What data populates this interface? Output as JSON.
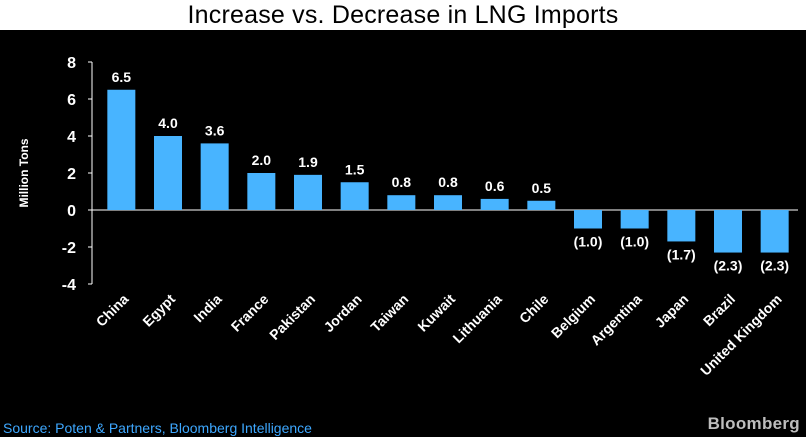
{
  "chart_data": {
    "type": "bar",
    "title": "Increase vs. Decrease in LNG Imports",
    "ylabel": "Million Tons",
    "xlabel": "",
    "ylim": [
      -4,
      8
    ],
    "yticks": [
      8,
      6,
      4,
      2,
      0,
      -2,
      -4
    ],
    "categories": [
      "China",
      "Egypt",
      "India",
      "France",
      "Pakistan",
      "Jordan",
      "Taiwan",
      "Kuwait",
      "Lithuania",
      "Chile",
      "Belgium",
      "Argentina",
      "Japan",
      "Brazil",
      "United Kingdom"
    ],
    "values": [
      6.5,
      4.0,
      3.6,
      2.0,
      1.9,
      1.5,
      0.8,
      0.8,
      0.6,
      0.5,
      -1.0,
      -1.0,
      -1.7,
      -2.3,
      -2.3
    ],
    "data_labels": [
      "6.5",
      "4.0",
      "3.6",
      "2.0",
      "1.9",
      "1.5",
      "0.8",
      "0.8",
      "0.6",
      "0.5",
      "(1.0)",
      "(1.0)",
      "(1.7)",
      "(2.3)",
      "(2.3)"
    ],
    "bar_color": "#48b4ff",
    "grid": false
  },
  "footer": {
    "source": "Source: Poten & Partners, Bloomberg Intelligence",
    "brand": "Bloomberg"
  },
  "colors": {
    "background": "#000000",
    "text": "#ffffff",
    "source_text": "#3ea8ff"
  }
}
